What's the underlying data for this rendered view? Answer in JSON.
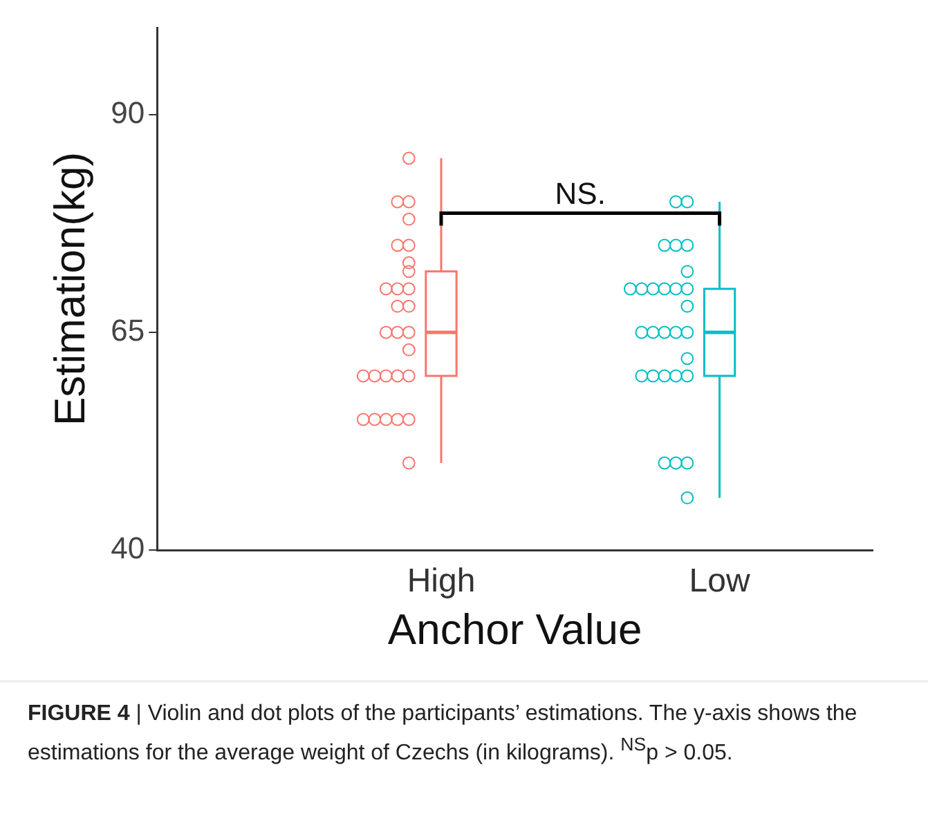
{
  "chart_data": {
    "type": "box",
    "categories": [
      "High",
      "Low"
    ],
    "xlabel": "Anchor Value",
    "ylabel": "Estimation(kg)",
    "ylim": [
      40,
      100
    ],
    "yticks": [
      40,
      65,
      90
    ],
    "grid": false,
    "legend": false,
    "marker": "circle",
    "colors": [
      "#f8766d",
      "#00bfc4"
    ],
    "boxes": [
      {
        "low": 50,
        "q1": 60,
        "median": 65,
        "q3": 72,
        "high": 85
      },
      {
        "low": 46,
        "q1": 60,
        "median": 65,
        "q3": 70,
        "high": 80
      }
    ],
    "series": [
      {
        "type": "scatter",
        "color": "#f8766d",
        "x": [
          "High",
          "High",
          "High",
          "High",
          "High",
          "High",
          "High",
          "High",
          "High",
          "High",
          "High",
          "High",
          "High",
          "High",
          "High",
          "High",
          "High",
          "High",
          "High",
          "High",
          "High",
          "High",
          "High",
          "High",
          "High",
          "High",
          "High",
          "High"
        ],
        "values": [
          85,
          80,
          80,
          78,
          75,
          75,
          73,
          72,
          70,
          70,
          70,
          68,
          68,
          65,
          65,
          65,
          63,
          60,
          60,
          60,
          60,
          60,
          55,
          55,
          55,
          55,
          55,
          50
        ]
      },
      {
        "type": "scatter",
        "color": "#00bfc4",
        "x": [
          "Low",
          "Low",
          "Low",
          "Low",
          "Low",
          "Low",
          "Low",
          "Low",
          "Low",
          "Low",
          "Low",
          "Low",
          "Low",
          "Low",
          "Low",
          "Low",
          "Low",
          "Low",
          "Low",
          "Low",
          "Low",
          "Low",
          "Low",
          "Low",
          "Low",
          "Low",
          "Low",
          "Low"
        ],
        "values": [
          80,
          80,
          75,
          75,
          75,
          72,
          70,
          70,
          70,
          70,
          70,
          70,
          68,
          65,
          65,
          65,
          65,
          65,
          62,
          60,
          60,
          60,
          60,
          60,
          50,
          50,
          50,
          46
        ]
      }
    ],
    "annotations": [
      "NS.",
      "FIGURE 4 | Violin and dot plots of the participants’ estimations. The y-axis shows the estimations for the average weight of Czechs (in kilograms). $^{NS}$p > 0.05."
    ]
  }
}
